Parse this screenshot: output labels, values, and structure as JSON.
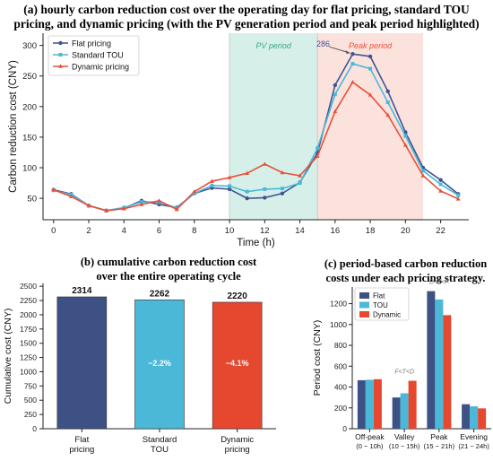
{
  "chart_data": [
    {
      "type": "line",
      "title": "(a) hourly carbon reduction cost over the operating day for flat pricing, standard TOU pricing, and dynamic pricing (with the PV generation period and peak period highlighted)",
      "xlabel": "Time (h)",
      "ylabel": "Carbon reduction cost (CNY)",
      "xlim": [
        -0.6,
        23.6
      ],
      "ylim": [
        15,
        320
      ],
      "xticks": [
        "0",
        "2",
        "4",
        "6",
        "8",
        "10",
        "12",
        "14",
        "16",
        "18",
        "20",
        "22"
      ],
      "yticks": [
        "50",
        "100",
        "150",
        "200",
        "250",
        "300"
      ],
      "x": [
        0,
        1,
        2,
        3,
        4,
        5,
        6,
        7,
        8,
        9,
        10,
        11,
        12,
        13,
        14,
        15,
        16,
        17,
        18,
        19,
        20,
        21,
        22,
        23
      ],
      "series": [
        {
          "name": "Flat pricing",
          "color": "#3f5591",
          "marker": "circle",
          "values": [
            64,
            57,
            38,
            30,
            34,
            46,
            40,
            35,
            58,
            67,
            65,
            50,
            51,
            58,
            76,
            124,
            235,
            286,
            282,
            225,
            158,
            100,
            80,
            57
          ]
        },
        {
          "name": "Standard TOU",
          "color": "#4bb8d8",
          "marker": "square",
          "values": [
            63,
            56,
            38,
            30,
            35,
            44,
            44,
            34,
            58,
            71,
            70,
            61,
            65,
            66,
            75,
            132,
            220,
            270,
            262,
            207,
            152,
            95,
            73,
            55
          ]
        },
        {
          "name": "Dynamic pricing",
          "color": "#e8503a",
          "marker": "triangle",
          "values": [
            64,
            53,
            38,
            30,
            33,
            40,
            46,
            32,
            61,
            78,
            84,
            91,
            106,
            92,
            87,
            119,
            192,
            240,
            219,
            186,
            137,
            87,
            62,
            49
          ]
        }
      ],
      "shaded_regions": [
        {
          "label": "PV period",
          "from": 10,
          "to": 15,
          "color": "#d6f0e9"
        },
        {
          "label": "Peak period",
          "from": 15,
          "to": 21,
          "color": "#fce2dd"
        }
      ],
      "annotation": {
        "text": "286",
        "x": 17,
        "y": 286
      },
      "legend": "top-left"
    },
    {
      "type": "bar",
      "title": "(b) cumulative carbon reduction cost over the entire operating cycle",
      "ylabel": "Cumulative cost (CNY)",
      "ylim": [
        0,
        2550
      ],
      "yticks": [
        "0",
        "250",
        "500",
        "750",
        "1000",
        "1250",
        "1500",
        "1750",
        "2000",
        "2250",
        "2500"
      ],
      "categories": [
        "Flat pricing",
        "Standard TOU",
        "Dynamic pricing"
      ],
      "values": [
        2314,
        2262,
        2220
      ],
      "colors": [
        "#3d5185",
        "#4bb8d8",
        "#e5472f"
      ],
      "bar_labels": [
        "",
        "−2.2%",
        "−4.1%"
      ]
    },
    {
      "type": "bar",
      "title": "(c) period-based carbon reduction costs under each pricing strategy.",
      "ylabel": "Period cost (CNY)",
      "ylim": [
        0,
        1360
      ],
      "yticks": [
        "0",
        "200",
        "400",
        "600",
        "800",
        "1000",
        "1200"
      ],
      "categories": [
        "Off-peak (0 − 10h)",
        "Valley (10 − 15h)",
        "Peak (15 − 21h)",
        "Evening (21 − 24h)"
      ],
      "series": [
        {
          "name": "Flat",
          "color": "#3d5185",
          "values": [
            465,
            300,
            1320,
            235
          ]
        },
        {
          "name": "TOU",
          "color": "#4bb8d8",
          "values": [
            470,
            340,
            1240,
            215
          ]
        },
        {
          "name": "Dynamic",
          "color": "#e5472f",
          "values": [
            475,
            460,
            1090,
            195
          ]
        }
      ],
      "annotations": [
        {
          "text": "F<T<D",
          "category": 1,
          "value": 460
        },
        {
          "text": "D<T<F",
          "category": 2,
          "value": 1320
        }
      ],
      "legend": "top-left"
    }
  ]
}
